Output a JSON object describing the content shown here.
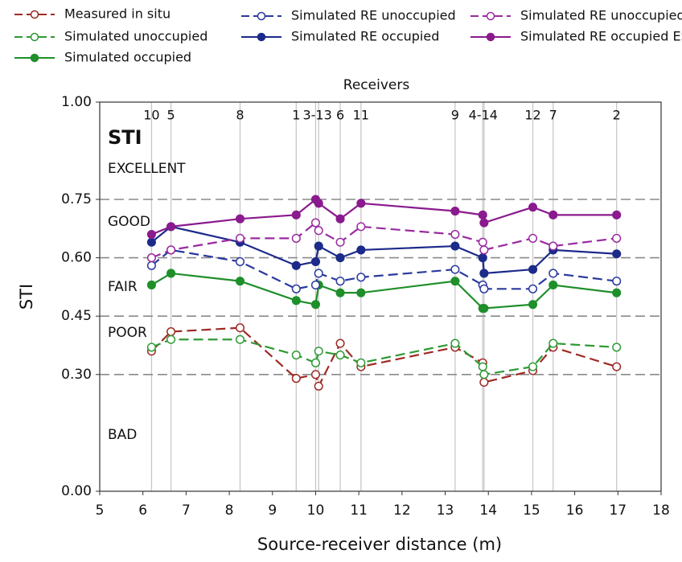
{
  "chart_data": {
    "type": "line",
    "title": "STI",
    "x_label": "Source-receiver distance (m)",
    "y_label": "STI",
    "x2_label": "Receivers",
    "ratings": [
      "EXCELLENT",
      "GOOD",
      "FAIR",
      "POOR",
      "BAD"
    ],
    "x": [
      6.2,
      6.65,
      8.25,
      9.55,
      10.0,
      10.07,
      10.57,
      11.05,
      13.23,
      13.87,
      13.9,
      15.03,
      15.5,
      16.97
    ],
    "xlim": [
      5,
      18
    ],
    "xticks": [
      5,
      6,
      7,
      8,
      9,
      10,
      11,
      12,
      13,
      14,
      15,
      16,
      17,
      18
    ],
    "ylim": [
      0,
      1
    ],
    "yticks": [
      {
        "value": 0,
        "label": "0.00"
      },
      {
        "value": 0.3,
        "label": "0.30"
      },
      {
        "value": 0.45,
        "label": "0.45"
      },
      {
        "value": 0.6,
        "label": "0.60"
      },
      {
        "value": 0.75,
        "label": "0.75"
      },
      {
        "value": 1,
        "label": "1.00"
      }
    ],
    "x2ticks": [
      {
        "value": 6.2,
        "label": "10"
      },
      {
        "value": 6.65,
        "label": "5"
      },
      {
        "value": 8.25,
        "label": "8"
      },
      {
        "value": 9.55,
        "label": "1"
      },
      {
        "value": 10.04,
        "label": "3-13"
      },
      {
        "value": 10.57,
        "label": "6"
      },
      {
        "value": 11.05,
        "label": "11"
      },
      {
        "value": 13.23,
        "label": "9"
      },
      {
        "value": 13.88,
        "label": "4-14"
      },
      {
        "value": 15.03,
        "label": "12"
      },
      {
        "value": 15.5,
        "label": "7"
      },
      {
        "value": 16.97,
        "label": "2"
      }
    ],
    "grid": "dashed",
    "series": [
      {
        "name": "Measured in situ",
        "color": "#9e2a25",
        "dashed": true,
        "marker": "open",
        "values": [
          0.36,
          0.41,
          0.42,
          0.29,
          0.3,
          0.27,
          0.38,
          0.32,
          0.37,
          0.33,
          0.28,
          0.31,
          0.37,
          0.32
        ]
      },
      {
        "name": "Simulated unoccupied",
        "color": "#2e9a35",
        "dashed": true,
        "marker": "open",
        "values": [
          0.37,
          0.39,
          0.39,
          0.35,
          0.33,
          0.36,
          0.35,
          0.33,
          0.38,
          0.32,
          0.3,
          0.32,
          0.38,
          0.37
        ]
      },
      {
        "name": "Simulated occupied",
        "color": "#1f8f2a",
        "dashed": false,
        "marker": "filled",
        "values": [
          0.53,
          0.56,
          0.54,
          0.49,
          0.48,
          0.53,
          0.51,
          0.51,
          0.54,
          0.47,
          0.47,
          0.48,
          0.53,
          0.51
        ]
      },
      {
        "name": "Simulated RE unoccupied",
        "color": "#2a3a9e",
        "dashed": true,
        "marker": "open",
        "values": [
          0.58,
          0.62,
          0.59,
          0.52,
          0.53,
          0.56,
          0.54,
          0.55,
          0.57,
          0.53,
          0.52,
          0.52,
          0.56,
          0.54
        ]
      },
      {
        "name": "Simulated RE occupied",
        "color": "#1c2a8a",
        "dashed": false,
        "marker": "filled",
        "values": [
          0.64,
          0.68,
          0.64,
          0.58,
          0.59,
          0.63,
          0.6,
          0.62,
          0.63,
          0.6,
          0.56,
          0.57,
          0.62,
          0.61
        ]
      },
      {
        "name": "Simulated RE unoccupied ES",
        "color": "#9a2aa0",
        "dashed": true,
        "marker": "open",
        "values": [
          0.6,
          0.62,
          0.65,
          0.65,
          0.69,
          0.67,
          0.64,
          0.68,
          0.66,
          0.64,
          0.62,
          0.65,
          0.63,
          0.65
        ]
      },
      {
        "name": "Simulated RE occupied ES",
        "color": "#8a1a8e",
        "dashed": false,
        "marker": "filled",
        "values": [
          0.66,
          0.68,
          0.7,
          0.71,
          0.75,
          0.74,
          0.7,
          0.74,
          0.72,
          0.71,
          0.69,
          0.73,
          0.71,
          0.71
        ]
      }
    ]
  }
}
